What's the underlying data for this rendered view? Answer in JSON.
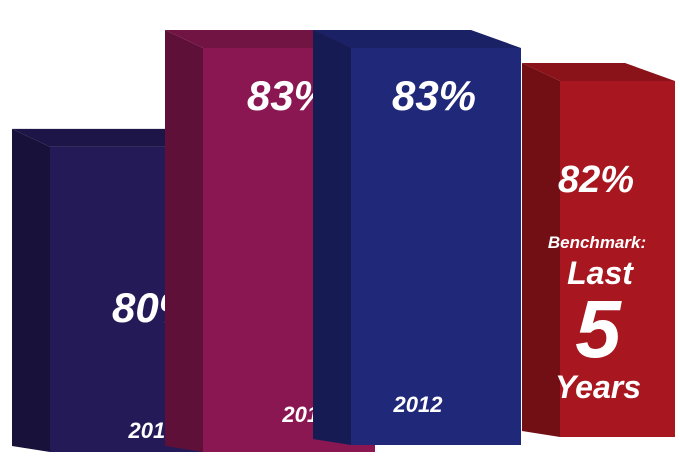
{
  "chart_data": {
    "type": "bar",
    "categories": [
      "2010",
      "2011",
      "2012",
      ""
    ],
    "values": [
      80,
      83,
      83,
      82
    ],
    "value_labels": [
      "80%",
      "83%",
      "83%",
      "82%"
    ],
    "colors": [
      "#231a57",
      "#8a1752",
      "#20287a",
      "#a8161f"
    ],
    "title": "",
    "xlabel": "",
    "ylabel": "",
    "grid": false,
    "legend": "none"
  },
  "benchmark": {
    "label": "Benchmark:",
    "line1": "Last",
    "number": "5",
    "line2": "Years"
  }
}
